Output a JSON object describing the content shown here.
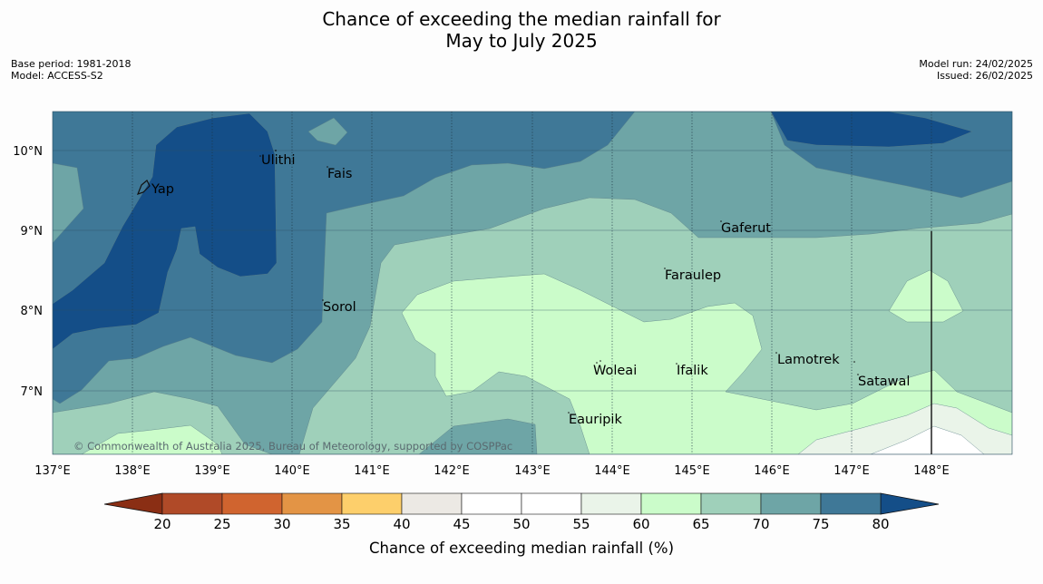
{
  "title": {
    "line1": "Chance of exceeding the median rainfall for",
    "line2": "May to July 2025"
  },
  "meta_left": {
    "base_period": "Base period: 1981-2018",
    "model": "Model: ACCESS-S2"
  },
  "meta_right": {
    "model_run": "Model run: 24/02/2025",
    "issued": "Issued: 26/02/2025"
  },
  "map": {
    "lon_ticks": [
      "137°E",
      "138°E",
      "139°E",
      "140°E",
      "141°E",
      "142°E",
      "143°E",
      "144°E",
      "145°E",
      "146°E",
      "147°E",
      "148°E"
    ],
    "lat_ticks": [
      "10°N",
      "9°N",
      "8°N",
      "7°N"
    ],
    "places": [
      {
        "name": "Yap"
      },
      {
        "name": "Ulithi"
      },
      {
        "name": "Fais"
      },
      {
        "name": "Gaferut"
      },
      {
        "name": "Faraulep"
      },
      {
        "name": "Sorol"
      },
      {
        "name": "Lamotrek"
      },
      {
        "name": "Woleai"
      },
      {
        "name": "Ifalik"
      },
      {
        "name": "Satawal"
      },
      {
        "name": "Eauripik"
      }
    ],
    "copyright": "© Commonwealth of Australia 2025, Bureau of Meteorology, supported by COSPPac"
  },
  "colorbar": {
    "title": "Chance of exceeding median rainfall (%)",
    "labels": [
      "20",
      "25",
      "30",
      "35",
      "40",
      "45",
      "50",
      "55",
      "60",
      "65",
      "70",
      "75",
      "80"
    ],
    "colors": {
      "below_20": "#8a2e14",
      "c20_25": "#b04a28",
      "c25_30": "#d0642f",
      "c30_35": "#e39445",
      "c35_40": "#fdcf6b",
      "c40_45": "#ece9e4",
      "c45_50": "#ffffff",
      "c50_55": "#ffffff",
      "c55_60": "#eaf4e9",
      "c60_65": "#cbfcca",
      "c65_70": "#9fd0ba",
      "c70_75": "#6ea5a6",
      "c75_80": "#3f7897",
      "above_80": "#144e88"
    }
  }
}
